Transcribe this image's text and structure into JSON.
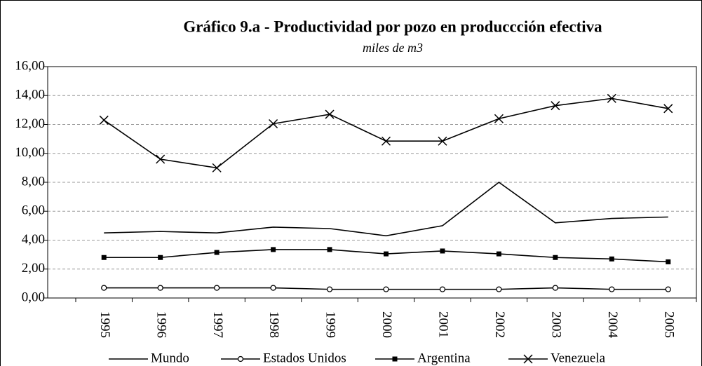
{
  "chart_data": {
    "type": "line",
    "title": "Gráfico 9.a - Productividad por pozo en produccción efectiva",
    "subtitle": "miles de m3",
    "categories": [
      "1995",
      "1996",
      "1997",
      "1998",
      "1999",
      "2000",
      "2001",
      "2002",
      "2003",
      "2004",
      "2005"
    ],
    "series": [
      {
        "name": "Mundo",
        "color": "#000000",
        "marker": "none",
        "values": [
          4.5,
          4.6,
          4.5,
          4.9,
          4.8,
          4.3,
          5.0,
          8.0,
          5.2,
          5.5,
          5.6
        ]
      },
      {
        "name": "Estados Unidos",
        "color": "#000000",
        "marker": "circle",
        "values": [
          0.7,
          0.7,
          0.7,
          0.7,
          0.6,
          0.6,
          0.6,
          0.6,
          0.7,
          0.6,
          0.6
        ]
      },
      {
        "name": "Argentina",
        "color": "#000000",
        "marker": "square",
        "values": [
          2.8,
          2.8,
          3.15,
          3.35,
          3.35,
          3.05,
          3.25,
          3.05,
          2.8,
          2.7,
          2.5
        ]
      },
      {
        "name": "Venezuela",
        "color": "#000000",
        "marker": "x",
        "values": [
          12.3,
          9.6,
          9.0,
          12.05,
          12.7,
          10.85,
          10.85,
          12.4,
          13.3,
          13.8,
          13.1
        ]
      }
    ],
    "ylim": [
      0,
      16
    ],
    "yticks": [
      {
        "value": 0,
        "label": "0,00"
      },
      {
        "value": 2,
        "label": "2,00"
      },
      {
        "value": 4,
        "label": "4,00"
      },
      {
        "value": 6,
        "label": "6,00"
      },
      {
        "value": 8,
        "label": "8,00"
      },
      {
        "value": 10,
        "label": "10,00"
      },
      {
        "value": 12,
        "label": "12,00"
      },
      {
        "value": 14,
        "label": "14,00"
      },
      {
        "value": 16,
        "label": "16,00"
      }
    ],
    "grid": true,
    "legend": "bottom"
  }
}
